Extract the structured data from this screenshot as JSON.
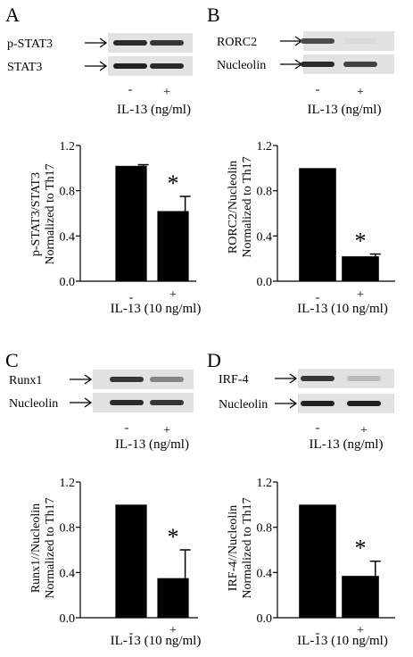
{
  "figure": {
    "panels": [
      {
        "letter": "A",
        "blot": {
          "rows": [
            "p-STAT3",
            "STAT3"
          ],
          "signs": [
            "-",
            "+"
          ],
          "treatment": "IL-13 (ng/ml)",
          "band_intensity": [
            [
              0.85,
              0.8
            ],
            [
              0.9,
              0.85
            ]
          ]
        }
      },
      {
        "letter": "B",
        "blot": {
          "rows": [
            "RORC2",
            "Nucleolin"
          ],
          "signs": [
            "-",
            "+"
          ],
          "treatment": "IL-13 (ng/ml)",
          "band_intensity": [
            [
              0.7,
              0.05
            ],
            [
              0.85,
              0.75
            ]
          ]
        }
      },
      {
        "letter": "C",
        "blot": {
          "rows": [
            "Runx1",
            "Nucleolin"
          ],
          "signs": [
            "-",
            "+"
          ],
          "treatment": "IL-13 (ng/ml)",
          "band_intensity": [
            [
              0.8,
              0.45
            ],
            [
              0.85,
              0.8
            ]
          ]
        }
      },
      {
        "letter": "D",
        "blot": {
          "rows": [
            "IRF-4",
            "Nucleolin"
          ],
          "signs": [
            "-",
            "+"
          ],
          "treatment": "IL-13 (ng/ml)",
          "band_intensity": [
            [
              0.8,
              0.2
            ],
            [
              0.9,
              0.9
            ]
          ]
        }
      }
    ]
  },
  "chart_data": [
    {
      "type": "bar",
      "ylabel": [
        "p-STAT3/STAT3",
        "Normalized to Th17"
      ],
      "ylim": [
        0,
        1.2
      ],
      "yticks": [
        "0.0",
        "0.4",
        "0.8",
        "1.2"
      ],
      "categories": [
        "-",
        "+"
      ],
      "xlabel": "IL-13 (10 ng/ml)",
      "values": [
        1.02,
        0.62
      ],
      "errors": [
        0.01,
        0.13
      ],
      "significance": [
        "",
        "*"
      ],
      "bar_color": "#000000"
    },
    {
      "type": "bar",
      "ylabel": [
        "RORC2/Nucleolin",
        "Normalized to Th17"
      ],
      "ylim": [
        0,
        1.2
      ],
      "yticks": [
        "0.0",
        "0.4",
        "0.8",
        "1.2"
      ],
      "categories": [
        "-",
        "+"
      ],
      "xlabel": "IL-13 (10 ng/ml)",
      "values": [
        1.0,
        0.22
      ],
      "errors": [
        0,
        0.02
      ],
      "significance": [
        "",
        "*"
      ],
      "bar_color": "#000000"
    },
    {
      "type": "bar",
      "ylabel": [
        "Runx1//Nucleolin",
        "Normalized to Th17"
      ],
      "ylim": [
        0,
        1.2
      ],
      "yticks": [
        "0.0",
        "0.4",
        "0.8",
        "1.2"
      ],
      "categories": [
        "-",
        "+"
      ],
      "xlabel": "IL-13 (10 ng/ml)",
      "values": [
        1.0,
        0.35
      ],
      "errors": [
        0,
        0.25
      ],
      "significance": [
        "",
        "*"
      ],
      "bar_color": "#000000"
    },
    {
      "type": "bar",
      "ylabel": [
        "IRF-4//Nucleolin",
        "Normalized to Th17"
      ],
      "ylim": [
        0,
        1.2
      ],
      "yticks": [
        "0.0",
        "0.4",
        "0.8",
        "1.2"
      ],
      "categories": [
        "-",
        "+"
      ],
      "xlabel": "IL-13 (10 ng/ml)",
      "values": [
        1.0,
        0.37
      ],
      "errors": [
        0,
        0.13
      ],
      "significance": [
        "",
        "*"
      ],
      "bar_color": "#000000"
    }
  ]
}
